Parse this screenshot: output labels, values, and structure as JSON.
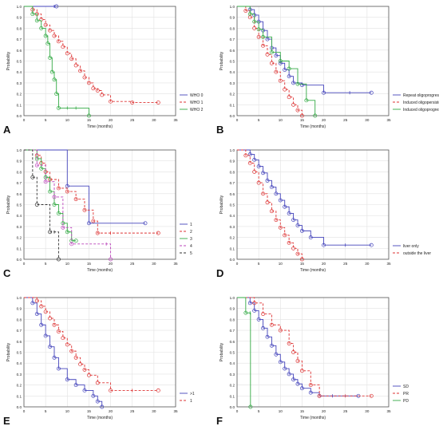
{
  "chart_data": [
    {
      "panel": "A",
      "type": "line",
      "xlabel": "Time (months)",
      "ylabel": "Probability",
      "xlim": [
        0,
        35
      ],
      "ylim": [
        0,
        1.0
      ],
      "xticks": [
        0,
        5,
        10,
        15,
        20,
        25,
        30,
        35
      ],
      "yticks": [
        0,
        0.1,
        0.2,
        0.3,
        0.4,
        0.5,
        0.6,
        0.7,
        0.8,
        0.9,
        1.0
      ],
      "legend_position": "bottom-right",
      "series": [
        {
          "name": "WHO 0",
          "color": "#4444bb",
          "dash": "solid",
          "x": [
            0,
            7,
            7.5
          ],
          "y": [
            1.0,
            1.0,
            1.0
          ]
        },
        {
          "name": "WHO 1",
          "color": "#dd3333",
          "dash": "dashed",
          "x": [
            0,
            2,
            3,
            4,
            5,
            6,
            7,
            8,
            9,
            10,
            11,
            12,
            13,
            14,
            15,
            16,
            17,
            18,
            20,
            25,
            31
          ],
          "y": [
            1.0,
            0.97,
            0.93,
            0.88,
            0.83,
            0.78,
            0.73,
            0.68,
            0.63,
            0.57,
            0.52,
            0.46,
            0.41,
            0.35,
            0.3,
            0.25,
            0.23,
            0.19,
            0.13,
            0.12,
            0.12
          ]
        },
        {
          "name": "WHO 2",
          "color": "#33aa44",
          "dash": "solid",
          "x": [
            0,
            2,
            3,
            4,
            5,
            5.5,
            6,
            6.5,
            7,
            7.5,
            8,
            10,
            12,
            15
          ],
          "y": [
            1.0,
            0.93,
            0.87,
            0.8,
            0.73,
            0.66,
            0.53,
            0.4,
            0.33,
            0.2,
            0.07,
            0.07,
            0.07,
            0.0
          ]
        }
      ]
    },
    {
      "panel": "B",
      "type": "line",
      "xlabel": "Time (months)",
      "ylabel": "Probability",
      "xlim": [
        0,
        35
      ],
      "ylim": [
        0,
        1.0
      ],
      "xticks": [
        0,
        5,
        10,
        15,
        20,
        25,
        30,
        35
      ],
      "yticks": [
        0,
        0.1,
        0.2,
        0.3,
        0.4,
        0.5,
        0.6,
        0.7,
        0.8,
        0.9,
        1.0
      ],
      "legend_position": "bottom-right",
      "series": [
        {
          "name": "Repeat oligoprogression",
          "color": "#4444bb",
          "dash": "solid",
          "x": [
            0,
            3,
            4,
            5,
            6,
            7,
            8,
            9,
            10,
            11,
            12,
            13,
            15,
            20,
            26,
            31
          ],
          "y": [
            1.0,
            0.97,
            0.92,
            0.86,
            0.78,
            0.7,
            0.62,
            0.55,
            0.48,
            0.42,
            0.36,
            0.3,
            0.28,
            0.21,
            0.21,
            0.21
          ]
        },
        {
          "name": "Induced oligopersistence",
          "color": "#dd3333",
          "dash": "dashed",
          "x": [
            0,
            2,
            3,
            4,
            5,
            6,
            7,
            8,
            9,
            10,
            11,
            12,
            13,
            14,
            15
          ],
          "y": [
            1.0,
            0.96,
            0.9,
            0.8,
            0.72,
            0.64,
            0.56,
            0.48,
            0.4,
            0.32,
            0.24,
            0.17,
            0.1,
            0.05,
            0.0
          ]
        },
        {
          "name": "Induced oligoprogression",
          "color": "#33aa44",
          "dash": "solid",
          "x": [
            0,
            3,
            4,
            5,
            6,
            8,
            10,
            12,
            14,
            16,
            18
          ],
          "y": [
            1.0,
            0.93,
            0.86,
            0.79,
            0.72,
            0.58,
            0.5,
            0.43,
            0.29,
            0.14,
            0.0
          ]
        }
      ]
    },
    {
      "panel": "C",
      "type": "line",
      "xlabel": "Time (months)",
      "ylabel": "Probability",
      "xlim": [
        0,
        35
      ],
      "ylim": [
        0,
        1.0
      ],
      "xticks": [
        0,
        5,
        10,
        15,
        20,
        25,
        30,
        35
      ],
      "yticks": [
        0,
        0.1,
        0.2,
        0.3,
        0.4,
        0.5,
        0.6,
        0.7,
        0.8,
        0.9,
        1.0
      ],
      "legend_position": "bottom-right",
      "series": [
        {
          "name": "1",
          "color": "#4444bb",
          "dash": "solid",
          "x": [
            0,
            10,
            15,
            28
          ],
          "y": [
            1.0,
            0.67,
            0.33,
            0.33
          ]
        },
        {
          "name": "2",
          "color": "#dd3333",
          "dash": "dashed",
          "x": [
            0,
            3,
            4,
            5,
            6,
            8,
            10,
            12,
            14,
            16,
            17,
            20,
            31
          ],
          "y": [
            1.0,
            0.95,
            0.88,
            0.8,
            0.73,
            0.65,
            0.62,
            0.55,
            0.45,
            0.35,
            0.24,
            0.24,
            0.24
          ]
        },
        {
          "name": "3",
          "color": "#33aa44",
          "dash": "solid",
          "x": [
            0,
            3,
            4,
            5,
            6,
            7,
            8,
            9,
            10,
            11,
            12
          ],
          "y": [
            1.0,
            0.92,
            0.83,
            0.75,
            0.62,
            0.5,
            0.42,
            0.33,
            0.25,
            0.17,
            0.17
          ]
        },
        {
          "name": "4",
          "color": "#bb44bb",
          "dash": "dashed",
          "x": [
            0,
            3,
            5,
            7,
            9,
            11,
            19,
            20
          ],
          "y": [
            1.0,
            0.86,
            0.71,
            0.57,
            0.29,
            0.14,
            0.14,
            0.0
          ]
        },
        {
          "name": "5",
          "color": "#333333",
          "dash": "dashed",
          "x": [
            0,
            2,
            3,
            6,
            7,
            8
          ],
          "y": [
            1.0,
            0.75,
            0.5,
            0.25,
            0.25,
            0.0
          ]
        }
      ]
    },
    {
      "panel": "D",
      "type": "line",
      "xlabel": "Time (months)",
      "ylabel": "Probability",
      "xlim": [
        0,
        35
      ],
      "ylim": [
        0,
        1.0
      ],
      "xticks": [
        0,
        5,
        10,
        15,
        20,
        25,
        30,
        35
      ],
      "yticks": [
        0,
        0.1,
        0.2,
        0.3,
        0.4,
        0.5,
        0.6,
        0.7,
        0.8,
        0.9,
        1.0
      ],
      "legend_position": "bottom-right",
      "series": [
        {
          "name": "liver only",
          "color": "#4444bb",
          "dash": "solid",
          "x": [
            0,
            3,
            4,
            5,
            6,
            7,
            8,
            9,
            10,
            11,
            12,
            13,
            14,
            15,
            17,
            20,
            25,
            31
          ],
          "y": [
            1.0,
            0.96,
            0.91,
            0.85,
            0.79,
            0.72,
            0.66,
            0.6,
            0.54,
            0.48,
            0.42,
            0.36,
            0.31,
            0.26,
            0.2,
            0.13,
            0.13,
            0.13
          ]
        },
        {
          "name": "outside the liver",
          "color": "#dd3333",
          "dash": "dashed",
          "x": [
            0,
            2,
            3,
            4,
            5,
            6,
            7,
            8,
            9,
            10,
            11,
            12,
            13,
            14,
            15
          ],
          "y": [
            1.0,
            0.95,
            0.88,
            0.8,
            0.7,
            0.6,
            0.52,
            0.44,
            0.36,
            0.29,
            0.22,
            0.15,
            0.1,
            0.05,
            0.0
          ]
        }
      ]
    },
    {
      "panel": "E",
      "type": "line",
      "xlabel": "Time (months)",
      "ylabel": "Probability",
      "xlim": [
        0,
        35
      ],
      "ylim": [
        0,
        1.0
      ],
      "xticks": [
        0,
        5,
        10,
        15,
        20,
        25,
        30,
        35
      ],
      "yticks": [
        0,
        0.1,
        0.2,
        0.3,
        0.4,
        0.5,
        0.6,
        0.7,
        0.8,
        0.9,
        1.0
      ],
      "legend_position": "bottom-right",
      "series": [
        {
          "name": ">1",
          "color": "#4444bb",
          "dash": "solid",
          "x": [
            0,
            2,
            3,
            4,
            5,
            6,
            7,
            8,
            10,
            12,
            14,
            16,
            17,
            18
          ],
          "y": [
            1.0,
            0.95,
            0.85,
            0.75,
            0.65,
            0.55,
            0.45,
            0.35,
            0.25,
            0.2,
            0.15,
            0.1,
            0.05,
            0.0
          ]
        },
        {
          "name": "1",
          "color": "#dd3333",
          "dash": "dashed",
          "x": [
            0,
            3,
            4,
            5,
            6,
            7,
            8,
            9,
            10,
            11,
            12,
            13,
            14,
            15,
            17,
            20,
            25,
            31
          ],
          "y": [
            1.0,
            0.97,
            0.92,
            0.87,
            0.81,
            0.75,
            0.69,
            0.63,
            0.57,
            0.51,
            0.45,
            0.39,
            0.34,
            0.29,
            0.22,
            0.15,
            0.15,
            0.15
          ]
        }
      ]
    },
    {
      "panel": "F",
      "type": "line",
      "xlabel": "Time (months)",
      "ylabel": "Probability",
      "xlim": [
        0,
        35
      ],
      "ylim": [
        0,
        1.0
      ],
      "xticks": [
        0,
        5,
        10,
        15,
        20,
        25,
        30,
        35
      ],
      "yticks": [
        0,
        0.1,
        0.2,
        0.3,
        0.4,
        0.5,
        0.6,
        0.7,
        0.8,
        0.9,
        1.0
      ],
      "legend_position": "bottom-right",
      "series": [
        {
          "name": "SD",
          "color": "#4444bb",
          "dash": "solid",
          "x": [
            0,
            3,
            4,
            5,
            6,
            7,
            8,
            9,
            10,
            11,
            12,
            13,
            14,
            15,
            17,
            19,
            22,
            28
          ],
          "y": [
            1.0,
            0.95,
            0.88,
            0.8,
            0.72,
            0.64,
            0.56,
            0.48,
            0.41,
            0.35,
            0.3,
            0.25,
            0.21,
            0.17,
            0.13,
            0.1,
            0.1,
            0.1
          ]
        },
        {
          "name": "PR",
          "color": "#dd3333",
          "dash": "dashed",
          "x": [
            0,
            4,
            6,
            8,
            10,
            12,
            13,
            14,
            15,
            17,
            19,
            25,
            31
          ],
          "y": [
            1.0,
            0.95,
            0.85,
            0.75,
            0.7,
            0.58,
            0.5,
            0.42,
            0.33,
            0.2,
            0.1,
            0.1,
            0.1
          ]
        },
        {
          "name": "PD",
          "color": "#33aa44",
          "dash": "solid",
          "x": [
            0,
            2,
            3,
            3.1
          ],
          "y": [
            1.0,
            0.86,
            0.86,
            0.0
          ]
        }
      ]
    }
  ]
}
